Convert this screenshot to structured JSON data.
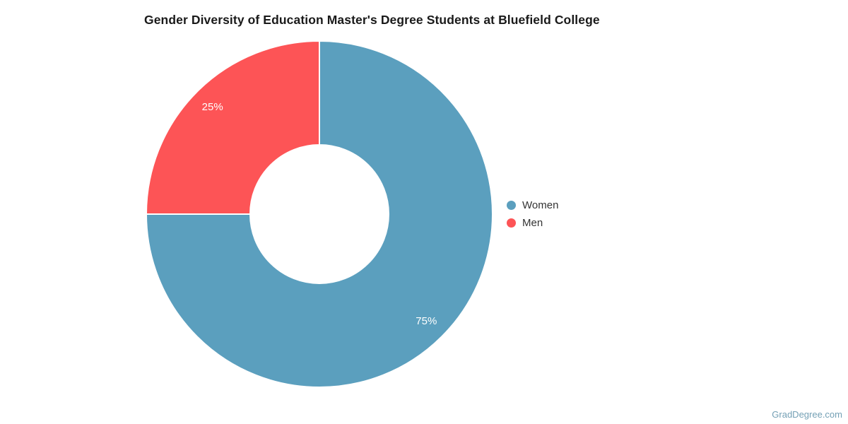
{
  "title": "Gender Diversity of Education Master's Degree Students at Bluefield College",
  "watermark": "GradDegree.com",
  "chart_data": {
    "type": "pie",
    "subtype": "donut",
    "title": "Gender Diversity of Education Master's Degree Students at Bluefield College",
    "categories": [
      "Women",
      "Men"
    ],
    "values": [
      75,
      25
    ],
    "slices": [
      {
        "label": "Women",
        "value": 75,
        "percent_label": "75%",
        "color": "#5b9fbe"
      },
      {
        "label": "Men",
        "value": 25,
        "percent_label": "25%",
        "color": "#fd5456"
      }
    ],
    "start_angle_deg": 0,
    "direction": "clockwise",
    "legend_position": "right",
    "slice_label_color": "#ffffff",
    "separator_color": "#ffffff",
    "background_color": "#ffffff"
  }
}
